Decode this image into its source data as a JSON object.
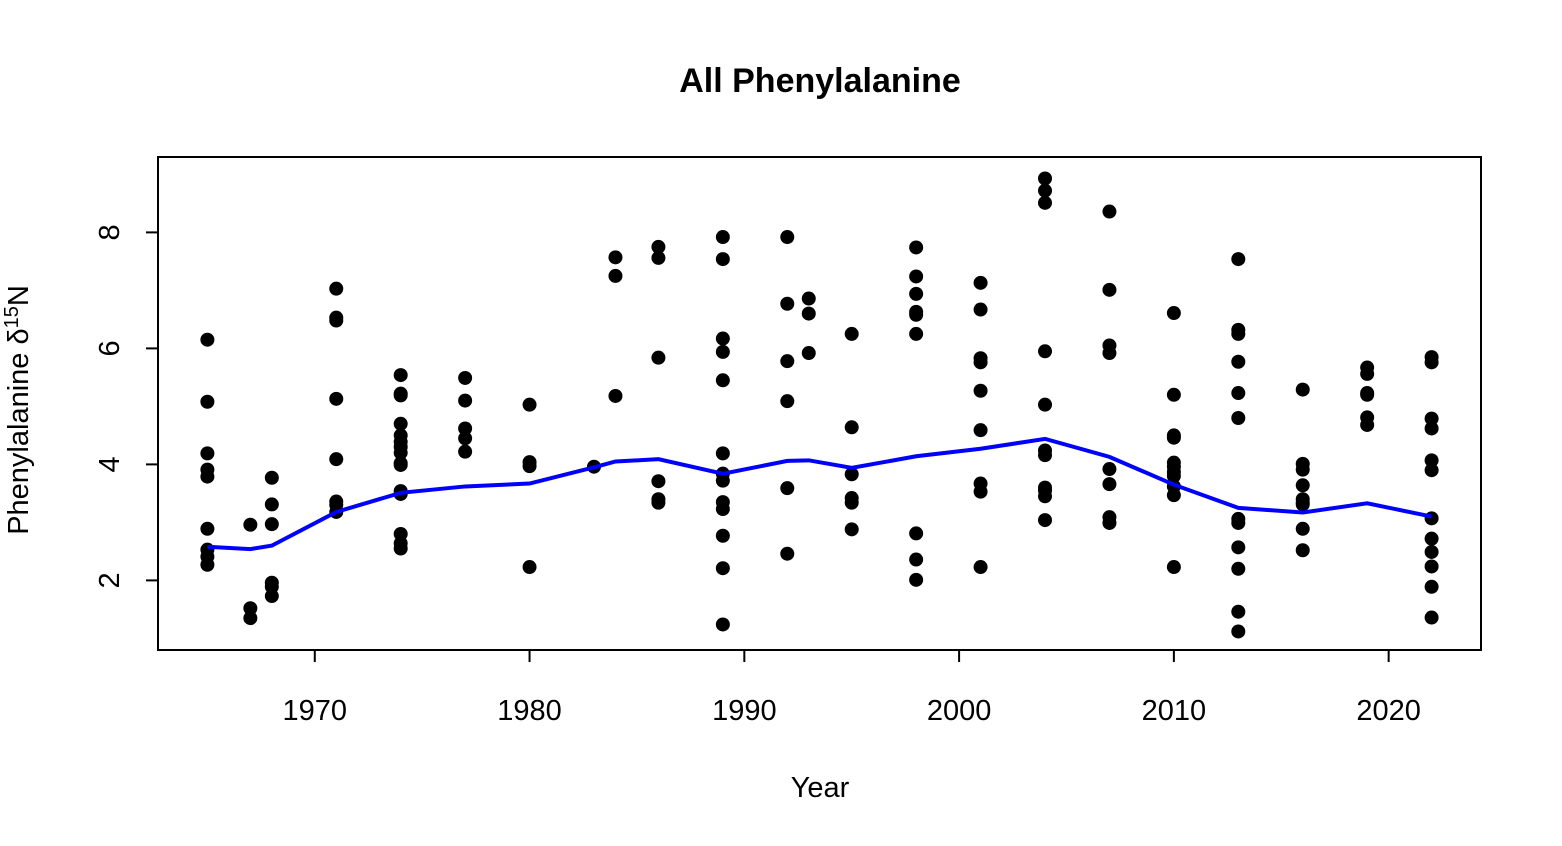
{
  "chart_data": {
    "type": "scatter",
    "title": "All Phenylalanine",
    "xlabel": "Year",
    "ylabel": "Phenylalanine δ",
    "ylabel_superscript": "15",
    "ylabel_suffix": "N",
    "xlim": [
      1962.7,
      2024.3
    ],
    "ylim": [
      0.8,
      9.3
    ],
    "x_ticks": [
      1970,
      1980,
      1990,
      2000,
      2010,
      2020
    ],
    "y_ticks": [
      2,
      4,
      6,
      8
    ],
    "grid": false,
    "legend": "none",
    "colors": {
      "points": "#000000",
      "trend_line": "#0000ff"
    },
    "series": [
      {
        "type": "scatter",
        "points": [
          [
            1965,
            6.15
          ],
          [
            1965,
            5.08
          ],
          [
            1965,
            4.19
          ],
          [
            1965,
            3.91
          ],
          [
            1965,
            3.79
          ],
          [
            1965,
            2.89
          ],
          [
            1965,
            2.53
          ],
          [
            1965,
            2.41
          ],
          [
            1965,
            2.27
          ],
          [
            1967,
            2.96
          ],
          [
            1967,
            1.52
          ],
          [
            1967,
            1.35
          ],
          [
            1968,
            3.77
          ],
          [
            1968,
            3.31
          ],
          [
            1968,
            2.97
          ],
          [
            1968,
            1.96
          ],
          [
            1968,
            1.89
          ],
          [
            1968,
            1.73
          ],
          [
            1971,
            7.03
          ],
          [
            1971,
            6.53
          ],
          [
            1971,
            6.48
          ],
          [
            1971,
            5.13
          ],
          [
            1971,
            4.09
          ],
          [
            1971,
            3.36
          ],
          [
            1971,
            3.3
          ],
          [
            1971,
            3.18
          ],
          [
            1974,
            5.54
          ],
          [
            1974,
            5.22
          ],
          [
            1974,
            5.19
          ],
          [
            1974,
            4.7
          ],
          [
            1974,
            4.5
          ],
          [
            1974,
            4.39
          ],
          [
            1974,
            4.3
          ],
          [
            1974,
            4.2
          ],
          [
            1974,
            4.02
          ],
          [
            1974,
            3.99
          ],
          [
            1974,
            3.54
          ],
          [
            1974,
            3.49
          ],
          [
            1974,
            2.8
          ],
          [
            1974,
            2.64
          ],
          [
            1974,
            2.55
          ],
          [
            1977,
            5.49
          ],
          [
            1977,
            5.1
          ],
          [
            1977,
            4.62
          ],
          [
            1977,
            4.45
          ],
          [
            1977,
            4.22
          ],
          [
            1980,
            5.03
          ],
          [
            1980,
            4.04
          ],
          [
            1980,
            3.97
          ],
          [
            1980,
            2.23
          ],
          [
            1983,
            3.96
          ],
          [
            1984,
            7.57
          ],
          [
            1984,
            7.25
          ],
          [
            1984,
            5.18
          ],
          [
            1986,
            7.75
          ],
          [
            1986,
            7.56
          ],
          [
            1986,
            5.84
          ],
          [
            1986,
            3.71
          ],
          [
            1986,
            3.4
          ],
          [
            1986,
            3.34
          ],
          [
            1989,
            7.92
          ],
          [
            1989,
            7.54
          ],
          [
            1989,
            6.17
          ],
          [
            1989,
            5.94
          ],
          [
            1989,
            5.45
          ],
          [
            1989,
            4.19
          ],
          [
            1989,
            3.84
          ],
          [
            1989,
            3.72
          ],
          [
            1989,
            3.35
          ],
          [
            1989,
            3.23
          ],
          [
            1989,
            2.77
          ],
          [
            1989,
            2.21
          ],
          [
            1989,
            1.24
          ],
          [
            1992,
            7.92
          ],
          [
            1992,
            6.77
          ],
          [
            1992,
            5.78
          ],
          [
            1992,
            5.09
          ],
          [
            1992,
            3.59
          ],
          [
            1992,
            2.46
          ],
          [
            1993,
            6.86
          ],
          [
            1993,
            6.6
          ],
          [
            1993,
            5.92
          ],
          [
            1995,
            6.25
          ],
          [
            1995,
            4.64
          ],
          [
            1995,
            3.83
          ],
          [
            1995,
            3.42
          ],
          [
            1995,
            3.34
          ],
          [
            1995,
            2.88
          ],
          [
            1998,
            7.74
          ],
          [
            1998,
            7.24
          ],
          [
            1998,
            6.94
          ],
          [
            1998,
            6.63
          ],
          [
            1998,
            6.58
          ],
          [
            1998,
            6.25
          ],
          [
            1998,
            2.81
          ],
          [
            1998,
            2.36
          ],
          [
            1998,
            2.01
          ],
          [
            2001,
            7.13
          ],
          [
            2001,
            6.67
          ],
          [
            2001,
            5.83
          ],
          [
            2001,
            5.76
          ],
          [
            2001,
            5.27
          ],
          [
            2001,
            4.59
          ],
          [
            2001,
            3.67
          ],
          [
            2001,
            3.53
          ],
          [
            2001,
            2.23
          ],
          [
            2004,
            8.93
          ],
          [
            2004,
            8.72
          ],
          [
            2004,
            8.51
          ],
          [
            2004,
            5.95
          ],
          [
            2004,
            5.03
          ],
          [
            2004,
            4.24
          ],
          [
            2004,
            4.16
          ],
          [
            2004,
            3.6
          ],
          [
            2004,
            3.55
          ],
          [
            2004,
            3.45
          ],
          [
            2004,
            3.04
          ],
          [
            2007,
            8.36
          ],
          [
            2007,
            7.01
          ],
          [
            2007,
            6.05
          ],
          [
            2007,
            5.92
          ],
          [
            2007,
            3.92
          ],
          [
            2007,
            3.66
          ],
          [
            2007,
            3.09
          ],
          [
            2007,
            2.99
          ],
          [
            2010,
            6.61
          ],
          [
            2010,
            5.2
          ],
          [
            2010,
            4.5
          ],
          [
            2010,
            4.46
          ],
          [
            2010,
            4.03
          ],
          [
            2010,
            3.96
          ],
          [
            2010,
            3.87
          ],
          [
            2010,
            3.8
          ],
          [
            2010,
            3.62
          ],
          [
            2010,
            3.47
          ],
          [
            2010,
            2.23
          ],
          [
            2013,
            7.54
          ],
          [
            2013,
            6.32
          ],
          [
            2013,
            6.25
          ],
          [
            2013,
            5.77
          ],
          [
            2013,
            5.23
          ],
          [
            2013,
            4.8
          ],
          [
            2013,
            3.06
          ],
          [
            2013,
            2.99
          ],
          [
            2013,
            2.57
          ],
          [
            2013,
            2.2
          ],
          [
            2013,
            1.46
          ],
          [
            2013,
            1.12
          ],
          [
            2016,
            5.29
          ],
          [
            2016,
            4.01
          ],
          [
            2016,
            3.91
          ],
          [
            2016,
            3.64
          ],
          [
            2016,
            3.4
          ],
          [
            2016,
            3.34
          ],
          [
            2016,
            3.31
          ],
          [
            2016,
            2.89
          ],
          [
            2016,
            2.52
          ],
          [
            2019,
            5.67
          ],
          [
            2019,
            5.56
          ],
          [
            2019,
            5.23
          ],
          [
            2019,
            5.2
          ],
          [
            2019,
            4.81
          ],
          [
            2019,
            4.68
          ],
          [
            2022,
            5.85
          ],
          [
            2022,
            5.76
          ],
          [
            2022,
            4.79
          ],
          [
            2022,
            4.62
          ],
          [
            2022,
            4.07
          ],
          [
            2022,
            3.9
          ],
          [
            2022,
            3.07
          ],
          [
            2022,
            2.72
          ],
          [
            2022,
            2.49
          ],
          [
            2022,
            2.24
          ],
          [
            2022,
            1.89
          ],
          [
            2022,
            1.36
          ]
        ]
      },
      {
        "type": "line",
        "points": [
          [
            1965,
            2.58
          ],
          [
            1967,
            2.54
          ],
          [
            1968,
            2.6
          ],
          [
            1971,
            3.18
          ],
          [
            1974,
            3.51
          ],
          [
            1977,
            3.62
          ],
          [
            1980,
            3.67
          ],
          [
            1983,
            3.95
          ],
          [
            1984,
            4.05
          ],
          [
            1986,
            4.09
          ],
          [
            1989,
            3.84
          ],
          [
            1992,
            4.06
          ],
          [
            1993,
            4.07
          ],
          [
            1995,
            3.94
          ],
          [
            1998,
            4.14
          ],
          [
            2001,
            4.27
          ],
          [
            2004,
            4.44
          ],
          [
            2007,
            4.13
          ],
          [
            2010,
            3.65
          ],
          [
            2013,
            3.25
          ],
          [
            2016,
            3.17
          ],
          [
            2019,
            3.33
          ],
          [
            2022,
            3.1
          ]
        ]
      }
    ]
  }
}
